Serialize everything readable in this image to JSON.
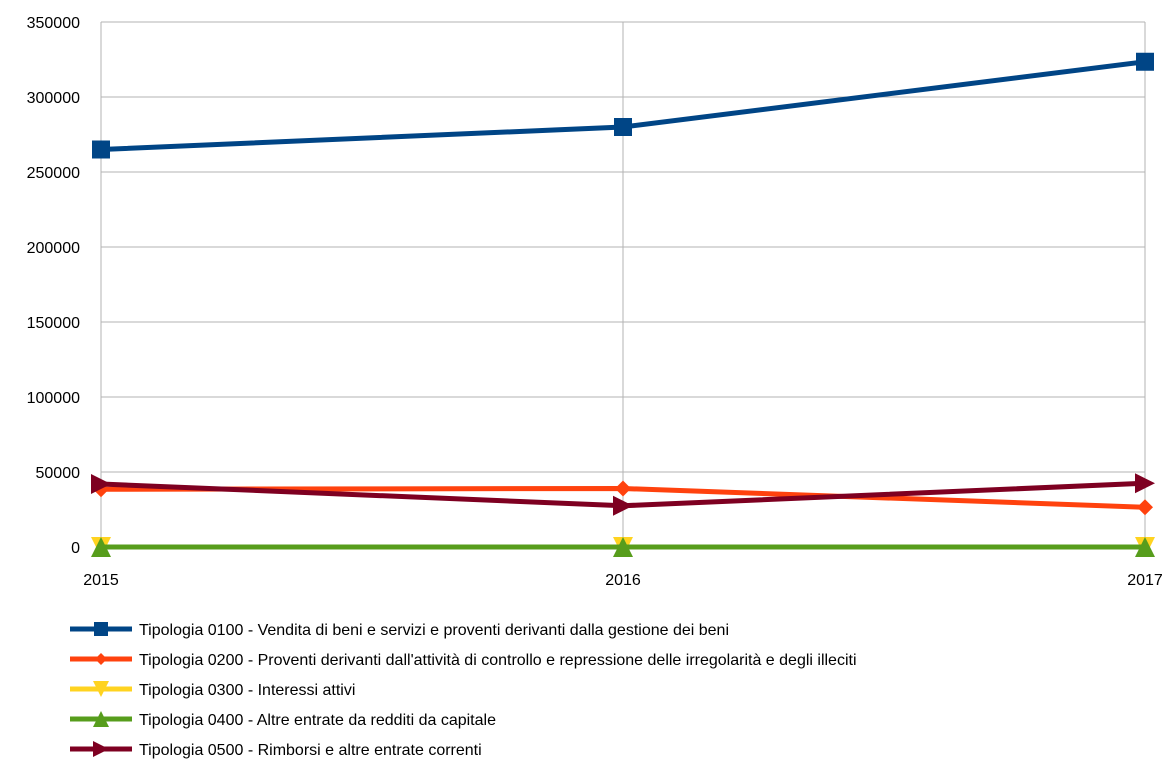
{
  "chart_data": {
    "type": "line",
    "categories": [
      "2015",
      "2016",
      "2017"
    ],
    "ylim": [
      0,
      350000
    ],
    "yticks": [
      0,
      50000,
      100000,
      150000,
      200000,
      250000,
      300000,
      350000
    ],
    "yticks_labels": [
      "0",
      "50000",
      "100000",
      "150000",
      "200000",
      "250000",
      "300000",
      "350000"
    ],
    "grid": true,
    "legend_position": "bottom",
    "series": [
      {
        "name": "Tipologia 0100 - Vendita di beni e servizi e proventi derivanti dalla gestione dei beni",
        "values": [
          265000,
          280000,
          323500
        ],
        "color": "#004586",
        "marker": "square"
      },
      {
        "name": "Tipologia 0200 - Proventi derivanti dall'attività di controllo e repressione delle irregolarità e degli illeciti",
        "values": [
          38500,
          39000,
          26500
        ],
        "color": "#ff420e",
        "marker": "diamond"
      },
      {
        "name": "Tipologia 0300 - Interessi attivi",
        "values": [
          0,
          0,
          0
        ],
        "color": "#ffd320",
        "marker": "triangle-down"
      },
      {
        "name": "Tipologia 0400 - Altre entrate da redditi da capitale",
        "values": [
          0,
          0,
          0
        ],
        "color": "#579d1c",
        "marker": "triangle-up"
      },
      {
        "name": "Tipologia 0500 - Rimborsi e altre entrate correnti",
        "values": [
          42000,
          27500,
          42500
        ],
        "color": "#7e0021",
        "marker": "triangle-right"
      }
    ]
  }
}
